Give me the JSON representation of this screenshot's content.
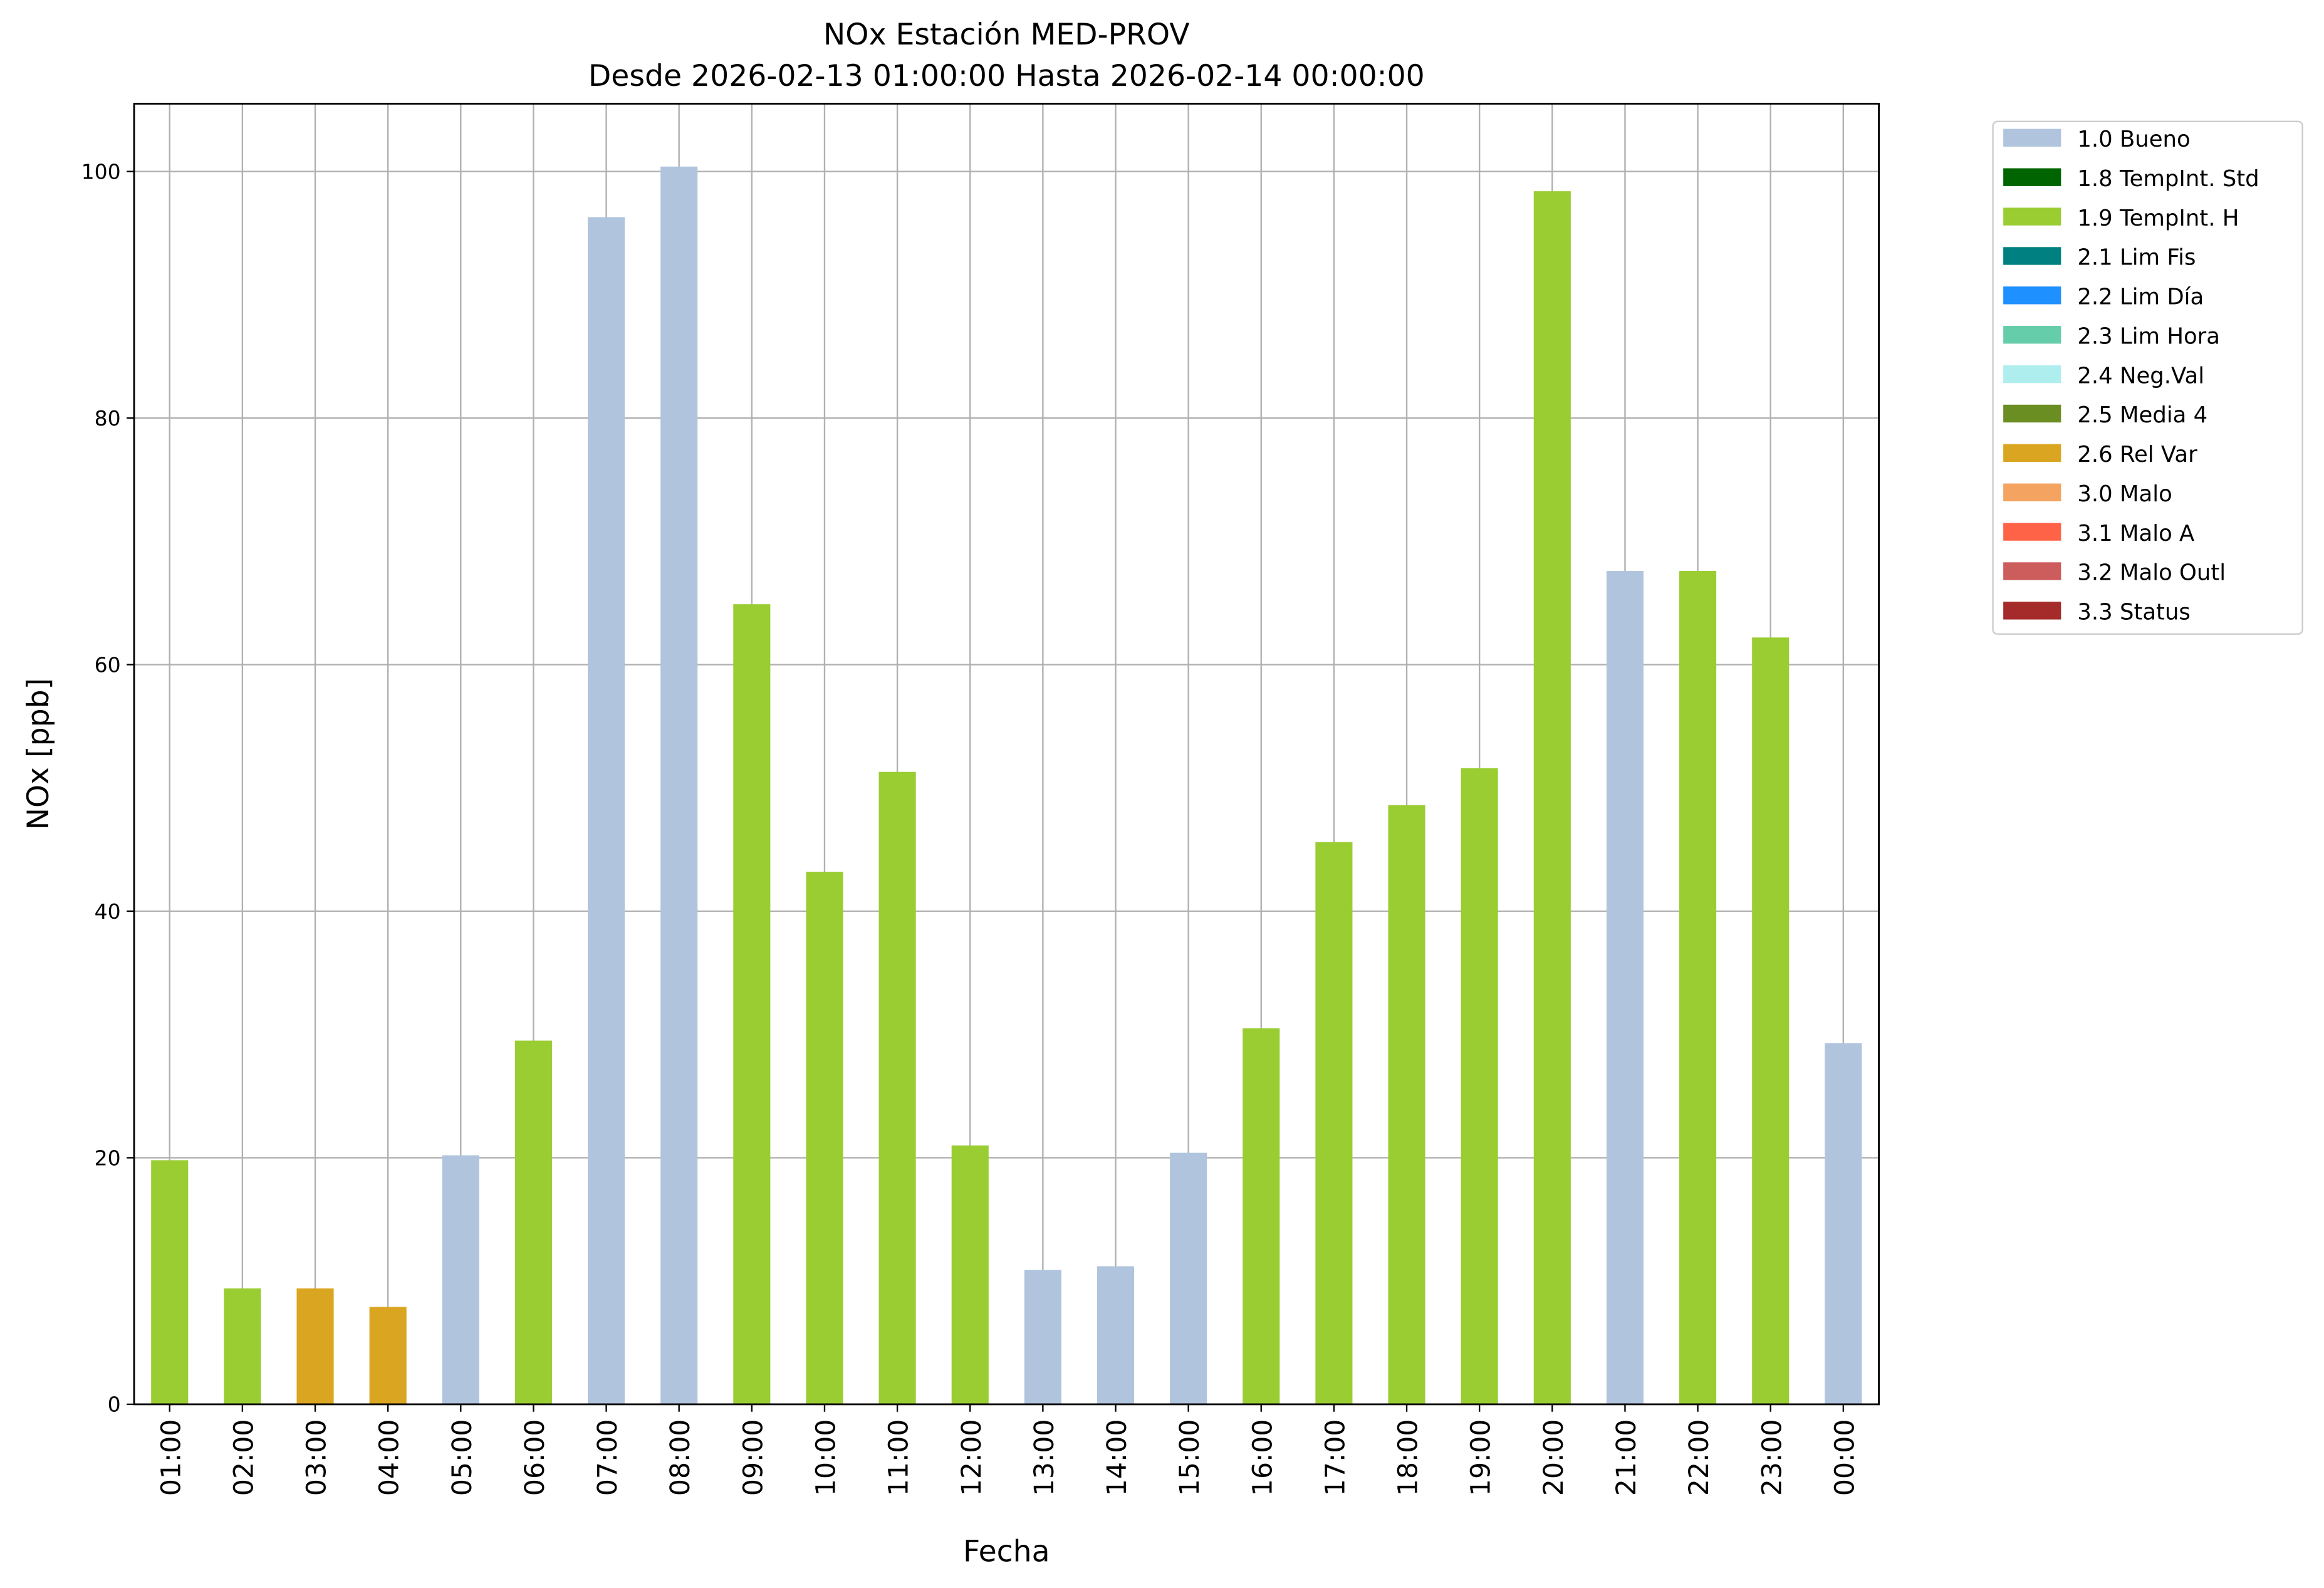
{
  "chart_data": {
    "type": "bar",
    "title": "NOx Estación MED-PROV",
    "subtitle": "Desde 2026-02-13 01:00:00 Hasta 2026-02-14 00:00:00",
    "xlabel": "Fecha",
    "ylabel": "NOx [ppb]",
    "ylim": [
      0,
      105.5
    ],
    "yticks": [
      0,
      20,
      40,
      60,
      80,
      100
    ],
    "grid": true,
    "legend_position": "outside-top-right",
    "categories": [
      "01:00",
      "02:00",
      "03:00",
      "04:00",
      "05:00",
      "06:00",
      "07:00",
      "08:00",
      "09:00",
      "10:00",
      "11:00",
      "12:00",
      "13:00",
      "14:00",
      "15:00",
      "16:00",
      "17:00",
      "18:00",
      "19:00",
      "20:00",
      "21:00",
      "22:00",
      "23:00",
      "00:00"
    ],
    "values": [
      19.8,
      9.4,
      9.4,
      7.9,
      20.2,
      29.5,
      96.3,
      100.4,
      64.9,
      43.2,
      51.3,
      21.0,
      10.9,
      11.2,
      20.4,
      30.5,
      45.6,
      48.6,
      51.6,
      98.4,
      67.6,
      67.6,
      62.2,
      29.3
    ],
    "flags": [
      "1.9 TempInt. H",
      "1.9 TempInt. H",
      "2.6 Rel Var",
      "2.6 Rel Var",
      "1.0 Bueno",
      "1.9 TempInt. H",
      "1.0 Bueno",
      "1.0 Bueno",
      "1.9 TempInt. H",
      "1.9 TempInt. H",
      "1.9 TempInt. H",
      "1.9 TempInt. H",
      "1.0 Bueno",
      "1.0 Bueno",
      "1.0 Bueno",
      "1.9 TempInt. H",
      "1.9 TempInt. H",
      "1.9 TempInt. H",
      "1.9 TempInt. H",
      "1.9 TempInt. H",
      "1.0 Bueno",
      "1.9 TempInt. H",
      "1.9 TempInt. H",
      "1.0 Bueno"
    ],
    "legend": [
      {
        "label": "1.0 Bueno",
        "color": "#b0c4de"
      },
      {
        "label": "1.8 TempInt. Std",
        "color": "#006400"
      },
      {
        "label": "1.9 TempInt. H",
        "color": "#9acd32"
      },
      {
        "label": "2.1 Lim Fis",
        "color": "#008080"
      },
      {
        "label": "2.2 Lim Día",
        "color": "#1e90ff"
      },
      {
        "label": "2.3 Lim Hora",
        "color": "#66cdaa"
      },
      {
        "label": "2.4 Neg.Val",
        "color": "#afeeee"
      },
      {
        "label": "2.5 Media 4",
        "color": "#6b8e23"
      },
      {
        "label": "2.6 Rel Var",
        "color": "#daa520"
      },
      {
        "label": "3.0 Malo",
        "color": "#f4a460"
      },
      {
        "label": "3.1 Malo A",
        "color": "#ff6347"
      },
      {
        "label": "3.2 Malo Outl",
        "color": "#cd5c5c"
      },
      {
        "label": "3.3 Status",
        "color": "#a52a2a"
      }
    ]
  }
}
